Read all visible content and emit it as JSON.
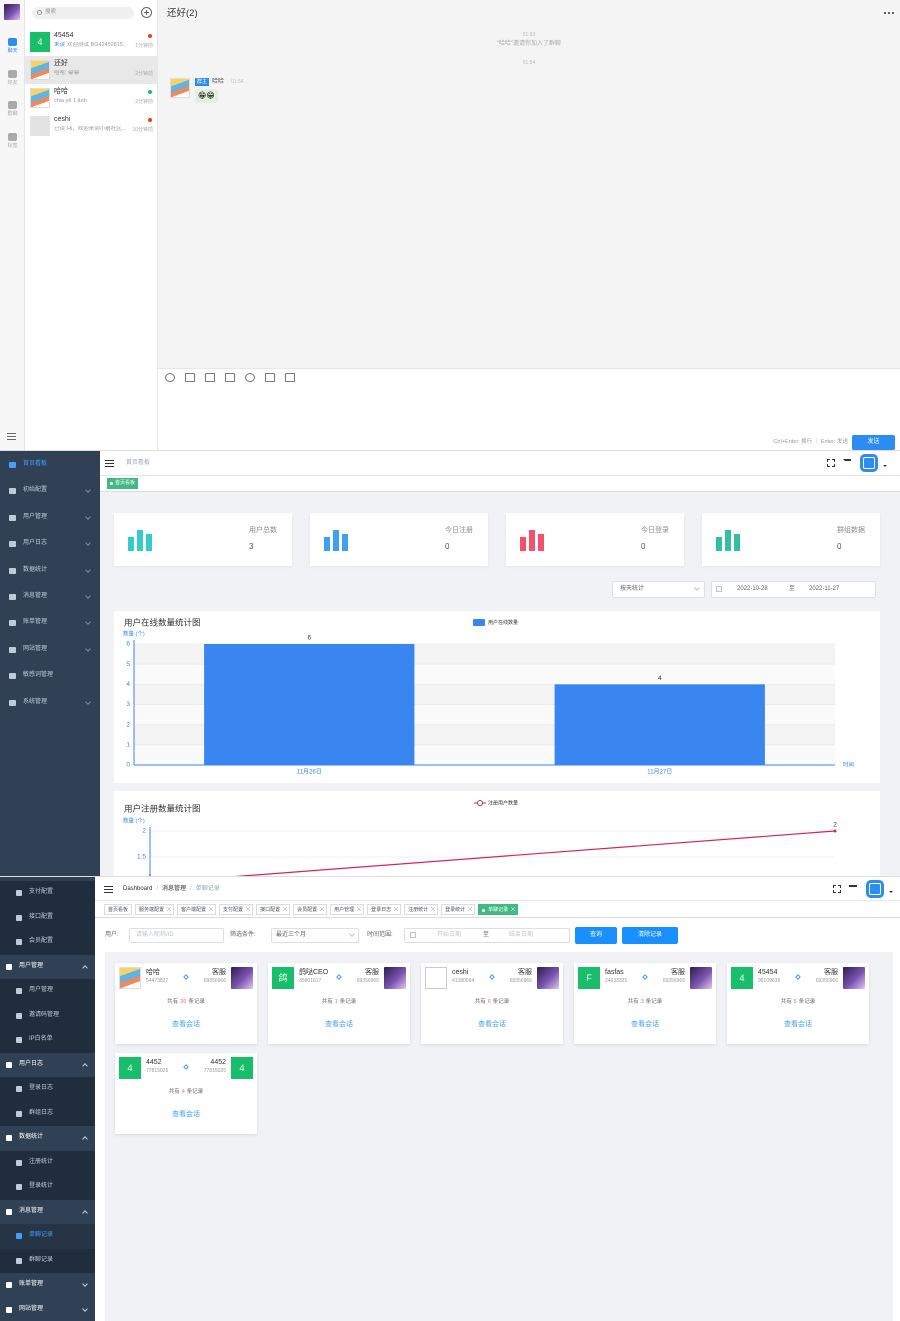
{
  "chat": {
    "nav": [
      "聊天",
      "好友",
      "群聊",
      "标签"
    ],
    "search_placeholder": "搜索",
    "conversations": [
      {
        "avatar_text": "4",
        "name": "45454",
        "status": "未读",
        "preview": "欢迎测试 BG42452815...",
        "time": "1分钟前"
      },
      {
        "name": "还好",
        "preview": "哈哈: 😁😁",
        "time": "2分钟前"
      },
      {
        "name": "哈哈",
        "preview": "chia yê 1 ảnh",
        "time": "2分钟前"
      },
      {
        "name": "ceshi",
        "status": "已读",
        "preview": "Hi，欢迎来到小蘑社区...",
        "time": "10分钟前"
      }
    ],
    "title": "还好(2)",
    "timeline": [
      {
        "time": "01:53",
        "notice": "“哈哈”邀请你加入了群聊"
      },
      {
        "time": "01:54"
      }
    ],
    "message": {
      "badge": "群主",
      "sender": "哈哈",
      "time": "01:54",
      "content": "😁😁"
    },
    "input_hint": "Ctrl+Enter: 换行 ｜ Enter: 发送",
    "send": "发送"
  },
  "dashboard": {
    "menu": [
      "首页看板",
      "初始配置",
      "用户管理",
      "用户日志",
      "数据统计",
      "消息管理",
      "账单管理",
      "网站管理",
      "敏感词管理",
      "系统管理"
    ],
    "breadcrumb": "首页看板",
    "tag": "首页看板",
    "stats": [
      {
        "label": "用户总数",
        "value": 3
      },
      {
        "label": "今日注册",
        "value": 0
      },
      {
        "label": "今日登录",
        "value": 0
      },
      {
        "label": "群组数据",
        "value": 0
      }
    ],
    "filter": {
      "mode": "按天统计",
      "start": "2022-10-28",
      "separator": "至",
      "end": "2022-11-27"
    },
    "charts": [
      {
        "type": "bar",
        "title": "用户在线数量统计图",
        "y_label": "数量 (个)",
        "x_label": "时间",
        "categories": [
          "11月26日",
          "11月27日"
        ],
        "series": [
          {
            "name": "用户在线数量",
            "color": "#3a86f0",
            "values": [
              6,
              4
            ]
          }
        ],
        "ylim": [
          0,
          6
        ],
        "yticks": [
          0,
          1,
          2,
          3,
          4,
          5,
          6
        ],
        "grid": true
      },
      {
        "type": "line",
        "title": "用户注册数量统计图",
        "y_label": "数量 (个)",
        "series": [
          {
            "name": "注册用户数量",
            "color": "#d4236a",
            "values": [
              1,
              2
            ]
          }
        ],
        "ylim": [
          1,
          2
        ],
        "yticks": [
          1.5,
          2
        ],
        "grid": true
      }
    ]
  },
  "records": {
    "menu_tail": [
      "支付配置",
      "接口配置",
      "会员配置"
    ],
    "menu": [
      {
        "title": "用户管理",
        "items": [
          "用户管理",
          "邀请码管理",
          "IP白名单"
        ]
      },
      {
        "title": "用户日志",
        "items": [
          "登录日志",
          "群组日志"
        ]
      },
      {
        "title": "数据统计",
        "items": [
          "注册统计",
          "登录统计"
        ]
      },
      {
        "title": "消息管理",
        "items": [
          "单聊记录",
          "群聊记录"
        ]
      },
      {
        "title": "账单管理"
      },
      {
        "title": "网站管理"
      }
    ],
    "breadcrumb": [
      "Dashboard",
      "消息管理",
      "单聊记录"
    ],
    "breadcrumb_separator": "/",
    "tabs": [
      "首页看板",
      "服务端配置",
      "客户端配置",
      "支付配置",
      "接口配置",
      "会员配置",
      "用户管理",
      "登录日志",
      "注册统计",
      "登录统计",
      "单聊记录"
    ],
    "filter": {
      "user_label": "用户:",
      "user_placeholder": "请输入昵称/ID",
      "condition_label": "筛选条件:",
      "condition": "最近三个月",
      "range_label": "时间范围:",
      "start_placeholder": "开始日期",
      "separator": "至",
      "end_placeholder": "结束日期",
      "search": "查询",
      "clear": "清除记录"
    },
    "record_prefix": "共有",
    "record_suffix": "条记录",
    "view": "查看会话",
    "cards": [
      {
        "name": "哈哈",
        "id": "54473837",
        "peer": "客服",
        "peer_id": "69356966",
        "count": 26
      },
      {
        "avatar_text": "鸽",
        "name": "鸽哒CEO",
        "id": "35801617",
        "peer": "客服",
        "peer_id": "69356966",
        "count": 1
      },
      {
        "name": "ceshi",
        "id": "41380564",
        "peer": "客服",
        "peer_id": "69356966",
        "count": 6
      },
      {
        "avatar_text": "F",
        "name": "fasfas",
        "id": "24633325",
        "peer": "客服",
        "peer_id": "69356966",
        "count": 3
      },
      {
        "avatar_text": "4",
        "name": "45454",
        "id": "96109636",
        "peer": "客服",
        "peer_id": "69356966",
        "count": 5
      },
      {
        "avatar_text": "4",
        "name": "4452",
        "id": "77815025",
        "peer": "4452",
        "peer_id": "77815025",
        "peer_avatar_text": "4",
        "count": 4
      }
    ]
  }
}
